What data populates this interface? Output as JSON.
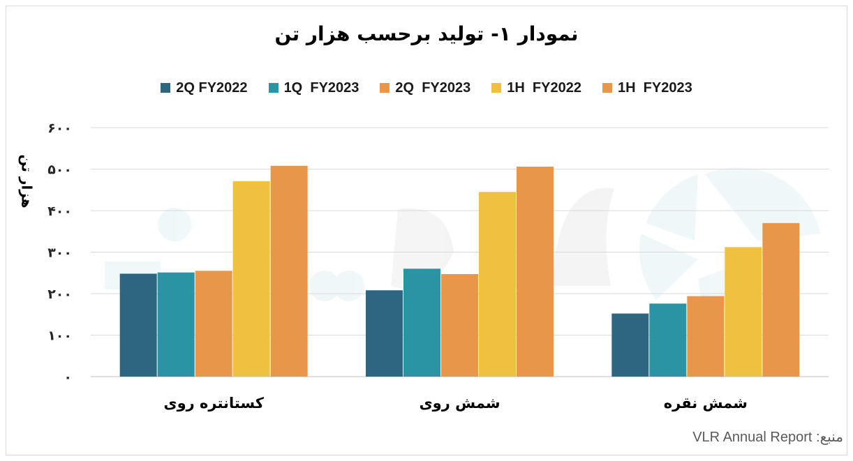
{
  "chart_data": {
    "type": "bar",
    "title": "نمودار ۱- تولید برحسب هزار تن",
    "ylabel": "هزار تن",
    "xlabel": "",
    "categories": [
      "کستانتره روی",
      "شمش روی",
      "شمش نقره"
    ],
    "series": [
      {
        "name": "2Q FY2022",
        "color": "#2e6682",
        "values": [
          248,
          208,
          152
        ]
      },
      {
        "name": "1Q  FY2023",
        "color": "#2a93a4",
        "values": [
          251,
          260,
          176
        ]
      },
      {
        "name": "2Q  FY2023",
        "color": "#e8964a",
        "values": [
          255,
          247,
          194
        ]
      },
      {
        "name": "1H  FY2022",
        "color": "#f0c040",
        "values": [
          471,
          445,
          312
        ]
      },
      {
        "name": "1H  FY2023",
        "color": "#e8964a",
        "values": [
          508,
          506,
          370
        ]
      }
    ],
    "ylim": [
      0,
      600
    ],
    "yticks": [
      0,
      100,
      200,
      300,
      400,
      500,
      600
    ],
    "ytick_labels": [
      "۰",
      "۱۰۰",
      "۲۰۰",
      "۳۰۰",
      "۴۰۰",
      "۵۰۰",
      "۶۰۰"
    ],
    "grid": true,
    "legend_position": "top"
  },
  "source": "منبع: VLR Annual Report"
}
